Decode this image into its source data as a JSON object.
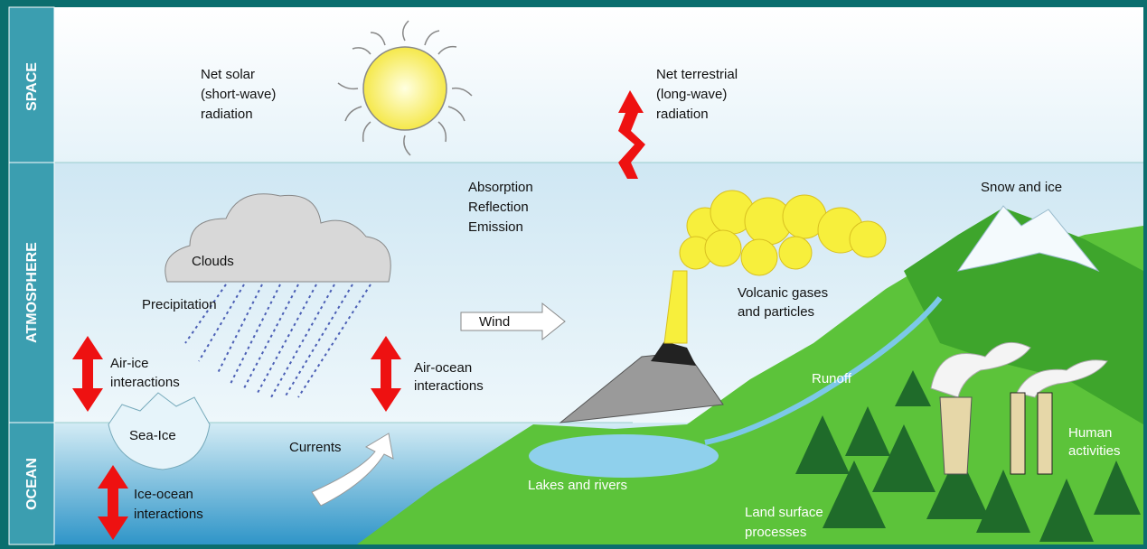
{
  "zones": [
    "SPACE",
    "ATMOSPHERE",
    "OCEAN"
  ],
  "labels": {
    "solar": [
      "Net solar",
      "(short-wave)",
      "radiation"
    ],
    "terrestrial": [
      "Net terrestrial",
      "(long-wave)",
      "radiation"
    ],
    "processes": [
      "Absorption",
      "Reflection",
      "Emission"
    ],
    "snow": [
      "Snow and ice"
    ],
    "clouds": [
      "Clouds"
    ],
    "precipitation": [
      "Precipitation"
    ],
    "wind": [
      "Wind"
    ],
    "volcanic": [
      "Volcanic gases",
      "and particles"
    ],
    "air_ice": [
      "Air-ice",
      "interactions"
    ],
    "air_ocean": [
      "Air-ocean",
      "interactions"
    ],
    "runoff": [
      "Runoff"
    ],
    "sea_ice": [
      "Sea-Ice"
    ],
    "currents": [
      "Currents"
    ],
    "lakes": [
      "Lakes and rivers"
    ],
    "human": [
      "Human",
      "activities"
    ],
    "ice_ocean": [
      "Ice-ocean",
      "interactions"
    ],
    "land": [
      "Land surface",
      "processes"
    ]
  }
}
